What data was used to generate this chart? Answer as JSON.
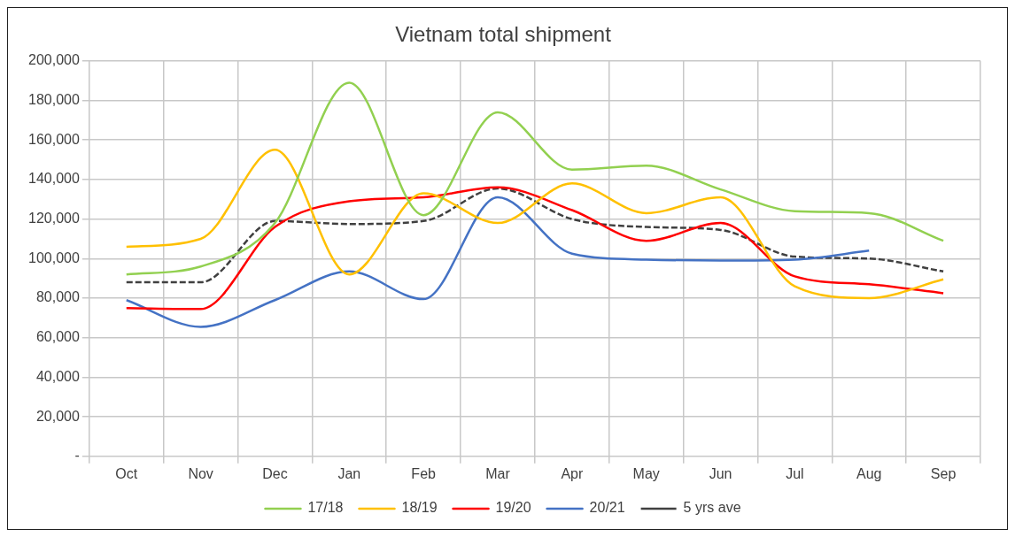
{
  "chart_data": {
    "type": "line",
    "title": "Vietnam total shipment",
    "categories": [
      "Oct",
      "Nov",
      "Dec",
      "Jan",
      "Feb",
      "Mar",
      "Apr",
      "May",
      "Jun",
      "Jul",
      "Aug",
      "Sep"
    ],
    "series": [
      {
        "name": "17/18",
        "color": "#92d050",
        "values": [
          92000,
          96000,
          118000,
          189000,
          122000,
          174000,
          145000,
          147000,
          135000,
          124000,
          123000,
          109000
        ]
      },
      {
        "name": "18/19",
        "color": "#ffc000",
        "values": [
          106000,
          110000,
          155000,
          92000,
          133000,
          118000,
          138000,
          123000,
          131000,
          86000,
          80000,
          89500
        ]
      },
      {
        "name": "19/20",
        "color": "#ff0000",
        "values": [
          75000,
          74500,
          116000,
          129000,
          131000,
          136000,
          124500,
          109000,
          118000,
          91000,
          87000,
          82500
        ]
      },
      {
        "name": "20/21",
        "color": "#4472c4",
        "values": [
          79000,
          65500,
          79000,
          93500,
          79500,
          131000,
          102500,
          99500,
          99000,
          99500,
          104000,
          null
        ]
      },
      {
        "name": "5 yrs ave",
        "color": "#404040",
        "line_style": "dashed",
        "values": [
          88000,
          88000,
          119000,
          117500,
          119000,
          135500,
          120000,
          116000,
          114500,
          101000,
          100000,
          93500
        ]
      }
    ],
    "ylim": [
      0,
      200000
    ],
    "yticks": [
      {
        "value": 0,
        "label": "-"
      },
      {
        "value": 20000,
        "label": "20,000"
      },
      {
        "value": 40000,
        "label": "40,000"
      },
      {
        "value": 60000,
        "label": "60,000"
      },
      {
        "value": 80000,
        "label": "80,000"
      },
      {
        "value": 100000,
        "label": "100,000"
      },
      {
        "value": 120000,
        "label": "120,000"
      },
      {
        "value": 140000,
        "label": "140,000"
      },
      {
        "value": 160000,
        "label": "160,000"
      },
      {
        "value": 180000,
        "label": "180,000"
      },
      {
        "value": 200000,
        "label": "200,000"
      }
    ],
    "grid": true,
    "legend": "bottom",
    "marker": "none",
    "line_style": "solid"
  }
}
